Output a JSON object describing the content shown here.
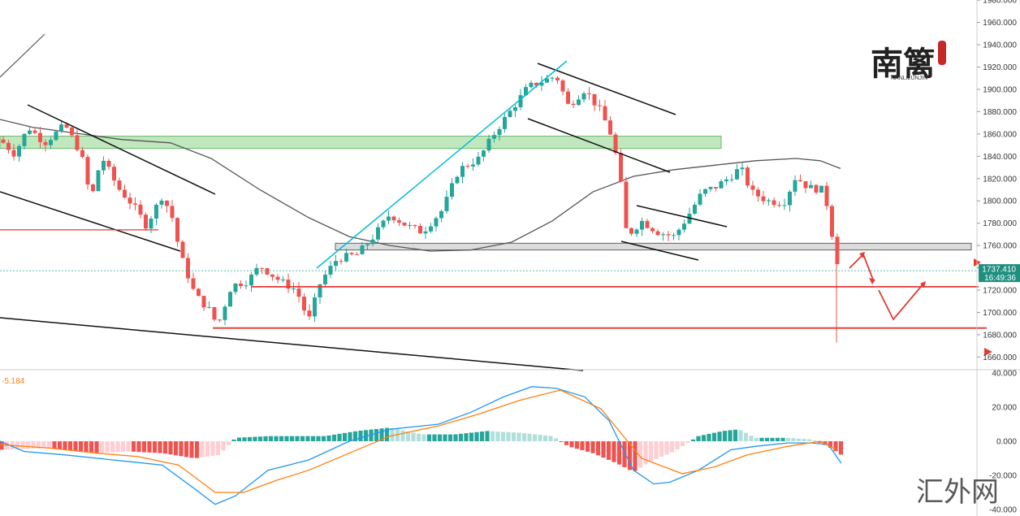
{
  "chart_data": {
    "type": "candlestick",
    "y_axis": {
      "ticks": [
        "1980.000",
        "1960.000",
        "1940.000",
        "1920.000",
        "1900.000",
        "1880.000",
        "1860.000",
        "1840.000",
        "1820.000",
        "1800.000",
        "1780.000",
        "1760.000",
        "1740.000",
        "1720.000",
        "1700.000",
        "1680.000",
        "1660.000"
      ],
      "tick_values": [
        1980,
        1960,
        1940,
        1920,
        1900,
        1880,
        1860,
        1840,
        1820,
        1800,
        1780,
        1760,
        1740,
        1720,
        1700,
        1680,
        1660
      ],
      "range": [
        1648,
        1982
      ]
    },
    "macd_axis": {
      "ticks": [
        "40.000",
        "20.000",
        "0.000",
        "-20.000",
        "-40.000"
      ],
      "tick_values": [
        40,
        20,
        0,
        -20,
        -40
      ],
      "range": [
        -44,
        40
      ]
    },
    "macd_label": "-5.184",
    "last_price_tag": {
      "price": "1737.410",
      "time": "16:49:36",
      "value": 1737.41
    },
    "horizontal_levels": [
      1774,
      1723,
      1686
    ],
    "zones": [
      {
        "low": 1847,
        "high": 1858,
        "color": "#b7e3b3"
      },
      {
        "low": 1756,
        "high": 1762,
        "color": "#d9d9d9"
      }
    ],
    "colors": {
      "up": "#26a69a",
      "down": "#ef5350",
      "ma": "#555555",
      "channel": "#00bcd4",
      "level": "#e53935",
      "macd": "#2196f3",
      "signal": "#ff7f0e"
    },
    "watermark": {
      "logo_text": "南篱",
      "logo_sub": "NANLILUNJIN",
      "site_text": "汇外网"
    }
  }
}
